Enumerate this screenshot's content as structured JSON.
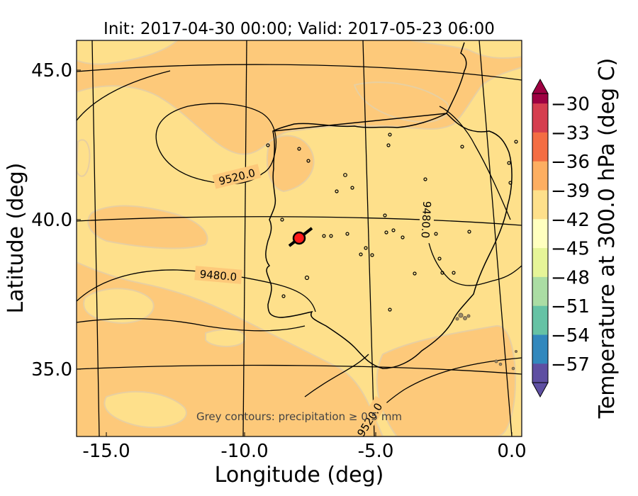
{
  "title": "Init: 2017-04-30 00:00; Valid: 2017-05-23 06:00",
  "xlabel": "Longitude (deg)",
  "ylabel": "Latitude (deg)",
  "x_ticks": [
    "-15.0",
    "-10.0",
    "-5.0",
    "0.0"
  ],
  "y_ticks": [
    "45.0",
    "40.0",
    "35.0"
  ],
  "colorbar": {
    "label": "Temperature at 300.0 hPa (deg C)",
    "ticks": [
      "−30",
      "−33",
      "−36",
      "−39",
      "−42",
      "−45",
      "−48",
      "−51",
      "−54",
      "−57"
    ],
    "min": -59,
    "max": -29,
    "extend": "both",
    "colormap": "Spectral_r"
  },
  "contour_labels": [
    "9520.0",
    "9480.0",
    "9480.0",
    "9520.0"
  ],
  "note": "Grey contours: precipitation ≥ 0.5 mm",
  "colors": {
    "field_dark": "#fdc97a",
    "field_light": "#fee08b",
    "marker_fill": "#ff1a1a"
  },
  "chart_data": {
    "type": "map",
    "projection": "conic (graticule curved)",
    "x_range": [
      -15.8,
      0.0
    ],
    "y_range": [
      33.0,
      46.0
    ],
    "graticule_lon": [
      -15,
      -10,
      -5,
      0
    ],
    "graticule_lat": [
      35,
      40,
      45
    ],
    "field": "Temperature at 300.0 hPa",
    "field_range_shown": [
      -44,
      -40
    ],
    "contour_levels": [
      9480.0,
      9520.0
    ],
    "marker": {
      "lon": -7.6,
      "lat": 39.4
    }
  }
}
